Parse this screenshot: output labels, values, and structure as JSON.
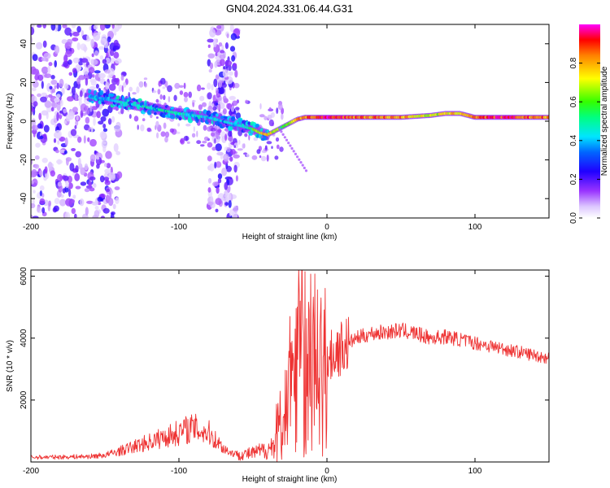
{
  "title": "GN04.2024.331.06.44.G31",
  "chart_data": [
    {
      "type": "heatmap",
      "xlabel": "Height of straight line (km)",
      "ylabel": "Frequency (Hz)",
      "xlim": [
        -200,
        150
      ],
      "ylim": [
        -50,
        50
      ],
      "xticks": [
        -200,
        -100,
        0,
        100
      ],
      "yticks": [
        -40,
        -20,
        0,
        20,
        40
      ],
      "grid": false,
      "colorbar": {
        "label": "Normalized spectral amplitude",
        "range": [
          0,
          1
        ],
        "ticks": [
          "0.0",
          "0.2",
          "0.4",
          "0.6",
          "0.8"
        ],
        "colormap": [
          "#ffffff",
          "#cc99ff",
          "#8000ff",
          "#0000ff",
          "#00ffff",
          "#00ff00",
          "#ffff00",
          "#ff8000",
          "#ff0000",
          "#ff00ff"
        ]
      },
      "ridge": {
        "x": [
          -160,
          -140,
          -120,
          -100,
          -80,
          -60,
          -50,
          -45,
          -40,
          -35,
          -30,
          -25,
          -20,
          -15,
          -10,
          0,
          20,
          50,
          70,
          80,
          90,
          100,
          120,
          150
        ],
        "frequency": [
          13,
          10,
          7,
          4,
          2,
          -2,
          -4,
          -6,
          -7,
          -5,
          -3,
          -1,
          1,
          2,
          2,
          2,
          2,
          2,
          3,
          4,
          4,
          2,
          2,
          2
        ],
        "amplitude": [
          0.35,
          0.45,
          0.5,
          0.5,
          0.45,
          0.45,
          0.6,
          0.75,
          0.8,
          0.7,
          0.6,
          0.7,
          0.85,
          0.9,
          0.9,
          0.95,
          0.9,
          0.85,
          0.7,
          0.75,
          0.8,
          0.9,
          0.95,
          0.85
        ]
      },
      "noise_bands": [
        {
          "x": [
            -200,
            -140
          ],
          "note": "broadband noise"
        },
        {
          "x": [
            -80,
            -60
          ],
          "note": "broadband noise"
        }
      ]
    },
    {
      "type": "line",
      "xlabel": "Height of straight line (km)",
      "ylabel": "SNR (10 * v/v)",
      "xlim": [
        -200,
        150
      ],
      "ylim": [
        0,
        6200
      ],
      "xticks": [
        -200,
        -100,
        0,
        100
      ],
      "yticks": [
        2000,
        4000,
        6000
      ],
      "grid": false,
      "series": [
        {
          "color": "#ee3333",
          "x": [
            -200,
            -180,
            -160,
            -150,
            -140,
            -130,
            -120,
            -110,
            -100,
            -95,
            -90,
            -85,
            -80,
            -75,
            -70,
            -65,
            -60,
            -55,
            -50,
            -45,
            -40,
            -35,
            -30,
            -25,
            -20,
            -18,
            -15,
            -10,
            -5,
            0,
            5,
            10,
            20,
            30,
            40,
            50,
            60,
            70,
            80,
            90,
            100,
            110,
            120,
            130,
            140,
            150
          ],
          "values": [
            150,
            160,
            180,
            220,
            350,
            500,
            650,
            800,
            950,
            1050,
            1100,
            1000,
            950,
            700,
            450,
            300,
            250,
            250,
            280,
            350,
            400,
            600,
            1500,
            2500,
            3500,
            4000,
            3600,
            3300,
            3200,
            3300,
            3500,
            3700,
            4000,
            4150,
            4200,
            4250,
            4150,
            4000,
            4050,
            3950,
            3850,
            3750,
            3650,
            3550,
            3450,
            3350
          ],
          "spikes": [
            {
              "x": -25,
              "value": 4700
            },
            {
              "x": -18,
              "value": 5200
            },
            {
              "x": -15,
              "value": 6150
            },
            {
              "x": -12,
              "value": 4900
            }
          ]
        }
      ]
    }
  ]
}
